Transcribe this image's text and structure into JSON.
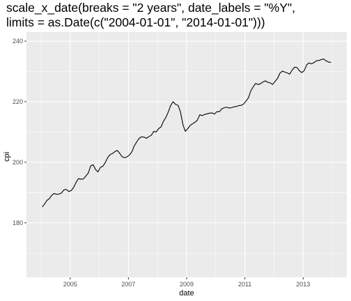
{
  "chart_data": {
    "type": "line",
    "title_line1": "scale_x_date(breaks = \"2 years\", date_labels = \"%Y\",",
    "title_line2": "limits = as.Date(c(\"2004-01-01\", \"2014-01-01\")))",
    "xlabel": "date",
    "ylabel": "cpi",
    "xlim": [
      "2004-01-01",
      "2014-01-01"
    ],
    "ylim": [
      162,
      243
    ],
    "x_breaks_major": [
      "2005-01-01",
      "2007-01-01",
      "2009-01-01",
      "2011-01-01",
      "2013-01-01"
    ],
    "x_tick_labels": [
      "2005",
      "2007",
      "2009",
      "2011",
      "2013"
    ],
    "y_breaks_major": [
      180,
      200,
      220,
      240
    ],
    "y_tick_labels": [
      "180",
      "200",
      "220",
      "240"
    ],
    "grid": true,
    "colors": {
      "panel_background": "#ebebeb",
      "grid_major": "#ffffff",
      "line": "#000000"
    },
    "series": [
      {
        "x": [
          "2004-01",
          "2004-02",
          "2004-03",
          "2004-04",
          "2004-05",
          "2004-06",
          "2004-07",
          "2004-08",
          "2004-09",
          "2004-10",
          "2004-11",
          "2004-12",
          "2005-01",
          "2005-02",
          "2005-03",
          "2005-04",
          "2005-05",
          "2005-06",
          "2005-07",
          "2005-08",
          "2005-09",
          "2005-10",
          "2005-11",
          "2005-12",
          "2006-01",
          "2006-02",
          "2006-03",
          "2006-04",
          "2006-05",
          "2006-06",
          "2006-07",
          "2006-08",
          "2006-09",
          "2006-10",
          "2006-11",
          "2006-12",
          "2007-01",
          "2007-02",
          "2007-03",
          "2007-04",
          "2007-05",
          "2007-06",
          "2007-07",
          "2007-08",
          "2007-09",
          "2007-10",
          "2007-11",
          "2007-12",
          "2008-01",
          "2008-02",
          "2008-03",
          "2008-04",
          "2008-05",
          "2008-06",
          "2008-07",
          "2008-08",
          "2008-09",
          "2008-10",
          "2008-11",
          "2008-12",
          "2009-01",
          "2009-02",
          "2009-03",
          "2009-04",
          "2009-05",
          "2009-06",
          "2009-07",
          "2009-08",
          "2009-09",
          "2009-10",
          "2009-11",
          "2009-12",
          "2010-01",
          "2010-02",
          "2010-03",
          "2010-04",
          "2010-05",
          "2010-06",
          "2010-07",
          "2010-08",
          "2010-09",
          "2010-10",
          "2010-11",
          "2010-12",
          "2011-01",
          "2011-02",
          "2011-03",
          "2011-04",
          "2011-05",
          "2011-06",
          "2011-07",
          "2011-08",
          "2011-09",
          "2011-10",
          "2011-11",
          "2011-12",
          "2012-01",
          "2012-02",
          "2012-03",
          "2012-04",
          "2012-05",
          "2012-06",
          "2012-07",
          "2012-08",
          "2012-09",
          "2012-10",
          "2012-11",
          "2012-12",
          "2013-01",
          "2013-02",
          "2013-03",
          "2013-04",
          "2013-05",
          "2013-06",
          "2013-07",
          "2013-08",
          "2013-09",
          "2013-10",
          "2013-11",
          "2013-12"
        ],
        "y": [
          185.2,
          186.2,
          187.4,
          188.0,
          189.1,
          189.7,
          189.4,
          189.5,
          189.9,
          190.9,
          191.0,
          190.3,
          190.7,
          191.8,
          193.3,
          194.6,
          194.4,
          194.5,
          195.4,
          196.4,
          198.8,
          199.2,
          197.6,
          196.8,
          198.3,
          198.7,
          199.8,
          201.5,
          202.5,
          202.9,
          203.5,
          203.9,
          202.9,
          201.8,
          201.5,
          201.8,
          202.4,
          203.5,
          205.4,
          206.7,
          207.9,
          208.4,
          208.3,
          207.9,
          208.5,
          208.9,
          210.2,
          210.0,
          211.1,
          211.7,
          213.5,
          214.8,
          216.6,
          218.8,
          220.0,
          219.1,
          218.8,
          216.6,
          212.4,
          210.2,
          211.1,
          212.2,
          212.7,
          213.2,
          213.9,
          215.7,
          215.4,
          215.8,
          216.0,
          216.2,
          216.3,
          215.9,
          216.7,
          216.7,
          217.6,
          218.0,
          218.2,
          217.9,
          218.0,
          218.3,
          218.4,
          218.7,
          218.8,
          219.2,
          220.2,
          221.3,
          223.5,
          224.9,
          226.0,
          225.7,
          225.9,
          226.5,
          226.9,
          226.4,
          226.2,
          225.7,
          226.7,
          227.7,
          229.4,
          230.1,
          229.8,
          229.5,
          229.1,
          230.4,
          231.4,
          231.3,
          230.2,
          229.6,
          230.3,
          232.2,
          232.8,
          232.5,
          232.9,
          233.5,
          233.6,
          233.9,
          234.1,
          233.5,
          233.1,
          233.0
        ]
      }
    ]
  }
}
